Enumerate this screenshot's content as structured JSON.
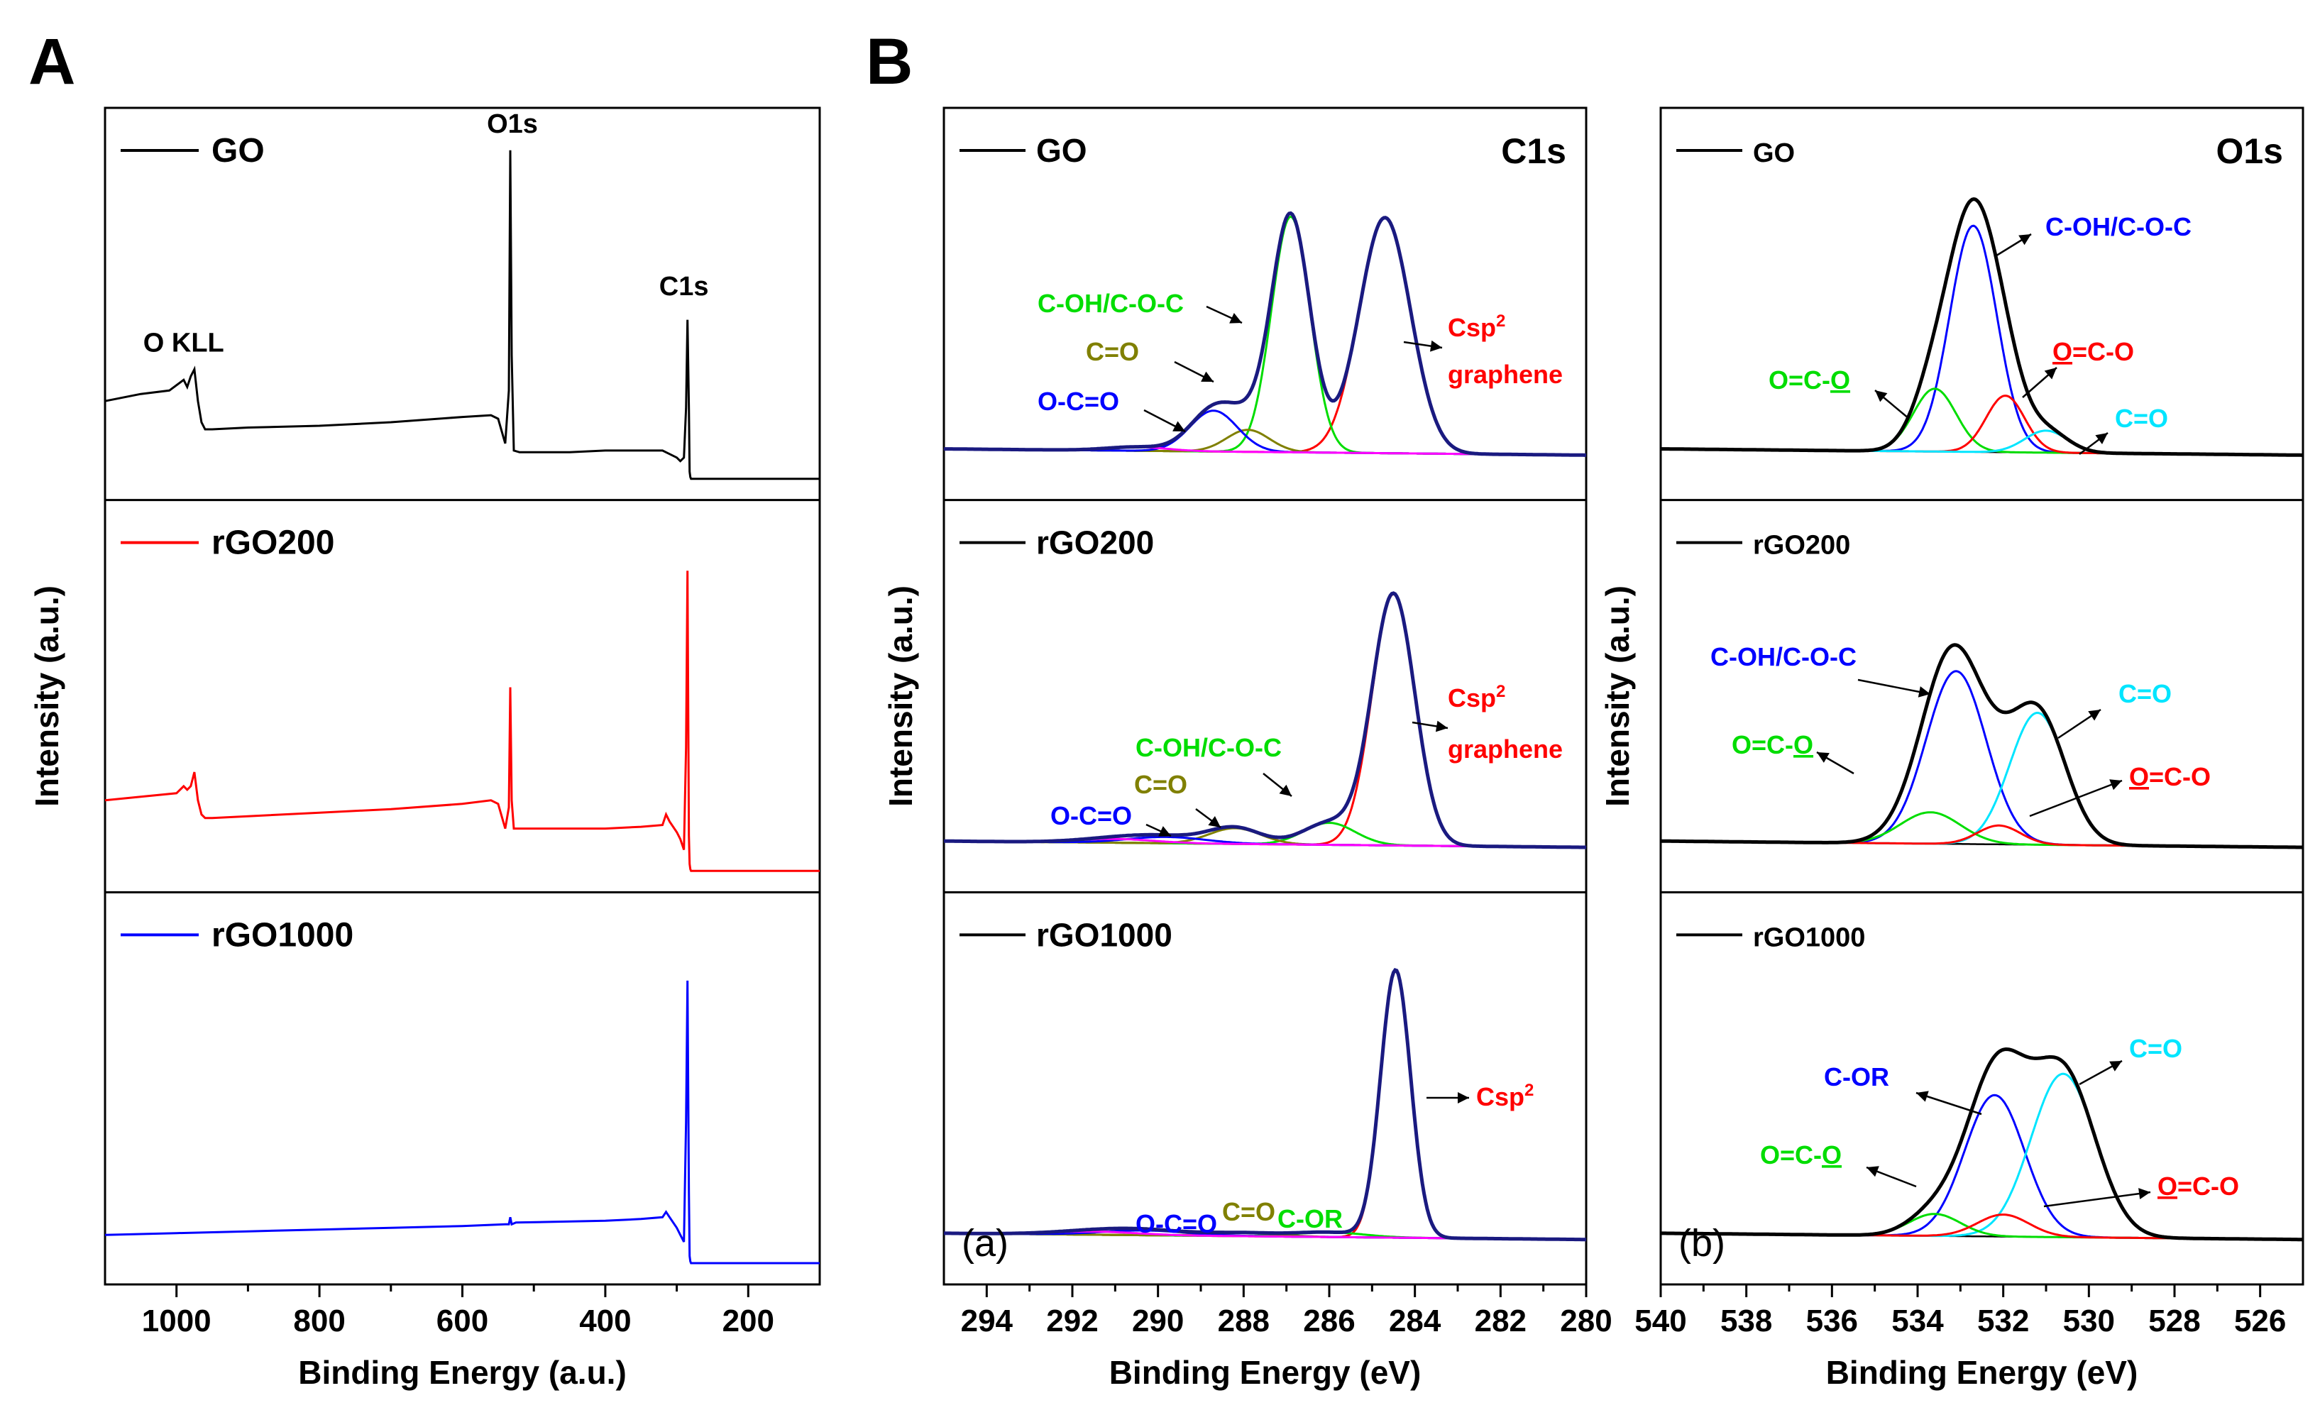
{
  "panel_letters": {
    "A": "A",
    "B": "B"
  },
  "colors": {
    "GO": "#000000",
    "rGO200": "#ff0000",
    "rGO1000": "#0000ff",
    "envelope": "#1a1a80",
    "red": "#ff0000",
    "green": "#00dd00",
    "olive": "#808000",
    "blue": "#0000ff",
    "magenta": "#ff00ff",
    "cyan": "#00e5ff",
    "baseline": "#000000"
  },
  "chart_data": [
    {
      "id": "A",
      "type": "line",
      "title": "",
      "xlabel": "Binding Energy (a.u.)",
      "ylabel": "Intensity (a.u.)",
      "xlim": [
        1100,
        100
      ],
      "xticks": [
        1000,
        800,
        600,
        400,
        200
      ],
      "xtick_labels": [
        "1000",
        "800",
        "600",
        "400",
        "200"
      ],
      "series": [
        {
          "name": "GO",
          "color": "#000000",
          "legend_label": "GO",
          "ylim": [
            0,
            1
          ],
          "x": [
            1100,
            1050,
            1010,
            990,
            985,
            980,
            975,
            970,
            965,
            960,
            950,
            900,
            800,
            700,
            600,
            560,
            550,
            540,
            535,
            533,
            531,
            528,
            520,
            500,
            450,
            400,
            350,
            320,
            310,
            300,
            295,
            290,
            287,
            285,
            283,
            282,
            281,
            280,
            270,
            200,
            100
          ],
          "y": [
            0.22,
            0.24,
            0.25,
            0.28,
            0.26,
            0.29,
            0.31,
            0.22,
            0.16,
            0.14,
            0.14,
            0.145,
            0.15,
            0.16,
            0.175,
            0.18,
            0.17,
            0.1,
            0.25,
            0.93,
            0.35,
            0.08,
            0.075,
            0.075,
            0.075,
            0.08,
            0.08,
            0.08,
            0.07,
            0.06,
            0.05,
            0.06,
            0.2,
            0.45,
            0.2,
            0.02,
            0.005,
            0.0,
            0.0,
            0.0,
            0.0
          ],
          "annotations": [
            {
              "text": "O KLL",
              "x": 990,
              "y": 0.36
            },
            {
              "text": "O1s",
              "x": 530,
              "y": 0.98
            },
            {
              "text": "C1s",
              "x": 290,
              "y": 0.52
            }
          ]
        },
        {
          "name": "rGO200",
          "color": "#ff0000",
          "legend_label": "rGO200",
          "ylim": [
            0,
            1
          ],
          "x": [
            1100,
            1050,
            1000,
            990,
            985,
            980,
            975,
            970,
            965,
            960,
            950,
            900,
            800,
            700,
            600,
            560,
            550,
            540,
            535,
            533,
            531,
            528,
            520,
            500,
            400,
            350,
            320,
            315,
            310,
            300,
            295,
            290,
            287,
            285,
            283,
            282,
            281,
            280,
            270,
            200,
            100
          ],
          "y": [
            0.2,
            0.21,
            0.22,
            0.24,
            0.23,
            0.24,
            0.28,
            0.2,
            0.16,
            0.15,
            0.15,
            0.155,
            0.165,
            0.175,
            0.19,
            0.2,
            0.19,
            0.12,
            0.18,
            0.52,
            0.2,
            0.12,
            0.12,
            0.12,
            0.12,
            0.125,
            0.13,
            0.16,
            0.14,
            0.11,
            0.09,
            0.06,
            0.35,
            0.85,
            0.1,
            0.02,
            0.005,
            0.0,
            0.0,
            0.0,
            0.0
          ]
        },
        {
          "name": "rGO1000",
          "color": "#0000ff",
          "legend_label": "rGO1000",
          "ylim": [
            0,
            1
          ],
          "x": [
            1100,
            1000,
            900,
            800,
            700,
            600,
            540,
            535,
            533,
            531,
            525,
            400,
            350,
            320,
            315,
            310,
            300,
            295,
            290,
            287,
            285,
            283,
            282,
            281,
            280,
            270,
            200,
            100
          ],
          "y": [
            0.08,
            0.085,
            0.09,
            0.095,
            0.1,
            0.105,
            0.11,
            0.11,
            0.13,
            0.11,
            0.115,
            0.12,
            0.125,
            0.13,
            0.145,
            0.13,
            0.1,
            0.08,
            0.06,
            0.4,
            0.8,
            0.2,
            0.02,
            0.005,
            0.0,
            0.0,
            0.0,
            0.0
          ]
        }
      ]
    },
    {
      "id": "B-C1s",
      "type": "line",
      "title": "C1s",
      "xlabel": "Binding Energy (eV)",
      "ylabel": "Intensity (a.u.)",
      "xlim": [
        295,
        280
      ],
      "xticks": [
        294,
        292,
        290,
        288,
        286,
        284,
        282,
        280
      ],
      "xtick_labels": [
        "294",
        "292",
        "290",
        "288",
        "286",
        "284",
        "282",
        "280"
      ],
      "subpanels": [
        {
          "legend": "GO",
          "components": [
            {
              "label": "Csp2 graphene",
              "color": "#ff0000",
              "center": 284.7,
              "height": 0.75,
              "width": 0.6
            },
            {
              "label": "C-OH/C-O-C",
              "color": "#00dd00",
              "center": 286.9,
              "height": 0.75,
              "width": 0.45
            },
            {
              "label": "C=O",
              "color": "#808000",
              "center": 287.9,
              "height": 0.07,
              "width": 0.5
            },
            {
              "label": "O-C=O",
              "color": "#0000ff",
              "center": 288.7,
              "height": 0.13,
              "width": 0.55
            },
            {
              "label": "",
              "color": "#ff00ff",
              "center": 290.5,
              "height": 0.012,
              "width": 0.7
            }
          ],
          "labels": [
            {
              "text": "C-OH/C-O-C",
              "color": "#00dd00"
            },
            {
              "text": "C=O",
              "color": "#808000"
            },
            {
              "text": "O-C=O",
              "color": "#0000ff"
            },
            {
              "text": "Csp",
              "sup": "2",
              "color": "#ff0000"
            },
            {
              "text": "graphene",
              "color": "#ff0000"
            }
          ]
        },
        {
          "legend": "rGO200",
          "components": [
            {
              "label": "Csp2 graphene",
              "color": "#ff0000",
              "center": 284.5,
              "height": 0.8,
              "width": 0.5
            },
            {
              "label": "C-OH/C-O-C",
              "color": "#00dd00",
              "center": 286.0,
              "height": 0.07,
              "width": 0.6
            },
            {
              "label": "C=O",
              "color": "#808000",
              "center": 288.2,
              "height": 0.05,
              "width": 0.6
            },
            {
              "label": "O-C=O",
              "color": "#0000ff",
              "center": 289.8,
              "height": 0.02,
              "width": 0.9
            },
            {
              "label": "",
              "color": "#ff00ff",
              "center": 291.0,
              "height": 0.012,
              "width": 0.9
            }
          ],
          "labels": [
            {
              "text": "C-OH/C-O-C",
              "color": "#00dd00"
            },
            {
              "text": "C=O",
              "color": "#808000"
            },
            {
              "text": "O-C=O",
              "color": "#0000ff"
            },
            {
              "text": "Csp",
              "sup": "2",
              "color": "#ff0000"
            },
            {
              "text": "graphene",
              "color": "#ff0000"
            }
          ]
        },
        {
          "legend": "rGO1000",
          "tag": "(a)",
          "components": [
            {
              "label": "Csp2",
              "color": "#ff0000",
              "center": 284.45,
              "height": 0.85,
              "width": 0.35
            },
            {
              "label": "C-OR",
              "color": "#00dd00",
              "center": 286.0,
              "height": 0.015,
              "width": 0.8
            },
            {
              "label": "C=O",
              "color": "#808000",
              "center": 288.0,
              "height": 0.01,
              "width": 0.8
            },
            {
              "label": "O-C=O",
              "color": "#0000ff",
              "center": 290.3,
              "height": 0.015,
              "width": 1.0
            },
            {
              "label": "",
              "color": "#ff00ff",
              "center": 291.5,
              "height": 0.01,
              "width": 1.0
            }
          ],
          "labels": [
            {
              "text": "Csp",
              "sup": "2",
              "color": "#ff0000"
            },
            {
              "text": "C-OR",
              "color": "#00dd00"
            },
            {
              "text": "C=O",
              "color": "#808000"
            },
            {
              "text": "O-C=O",
              "color": "#0000ff"
            }
          ]
        }
      ]
    },
    {
      "id": "B-O1s",
      "type": "line",
      "title": "O1s",
      "xlabel": "Binding Energy (eV)",
      "ylabel": "Intensity (a.u.)",
      "xlim": [
        540,
        525
      ],
      "xticks": [
        540,
        538,
        536,
        534,
        532,
        530,
        528,
        526
      ],
      "xtick_labels": [
        "540",
        "538",
        "536",
        "534",
        "532",
        "530",
        "528",
        "526"
      ],
      "subpanels": [
        {
          "legend": "GO",
          "components": [
            {
              "label": "C-OH/C-O-C",
              "color": "#0000ff",
              "center": 532.7,
              "height": 0.72,
              "width": 0.55
            },
            {
              "label": "O=C-O",
              "color": "#00dd00",
              "center": 533.6,
              "height": 0.2,
              "width": 0.5
            },
            {
              "label": "O=C-O",
              "color": "#ff0000",
              "center": 531.95,
              "height": 0.18,
              "width": 0.45
            },
            {
              "label": "C=O",
              "color": "#00e5ff",
              "center": 531.0,
              "height": 0.07,
              "width": 0.5
            }
          ],
          "labels": [
            {
              "text": "C-OH/C-O-C",
              "color": "#0000ff"
            },
            {
              "text": "O=C-",
              "u": "O",
              "color": "#00dd00"
            },
            {
              "text": "O",
              "u1": true,
              "rest": "=C-O",
              "color": "#ff0000"
            },
            {
              "text": "C=O",
              "color": "#00e5ff"
            }
          ]
        },
        {
          "legend": "rGO200",
          "components": [
            {
              "label": "C-OH/C-O-C",
              "color": "#0000ff",
              "center": 533.1,
              "height": 0.55,
              "width": 0.7
            },
            {
              "label": "C=O",
              "color": "#00e5ff",
              "center": 531.2,
              "height": 0.42,
              "width": 0.65
            },
            {
              "label": "O=C-O",
              "color": "#00dd00",
              "center": 533.7,
              "height": 0.1,
              "width": 0.7
            },
            {
              "label": "O=C-O",
              "color": "#ff0000",
              "center": 532.1,
              "height": 0.06,
              "width": 0.5
            }
          ],
          "labels": [
            {
              "text": "C-OH/C-O-C",
              "color": "#0000ff"
            },
            {
              "text": "C=O",
              "color": "#00e5ff"
            },
            {
              "text": "O=C-",
              "u": "O",
              "color": "#00dd00"
            },
            {
              "text": "O",
              "u1": true,
              "rest": "=C-O",
              "color": "#ff0000"
            }
          ]
        },
        {
          "legend": "rGO1000",
          "tag": "(b)",
          "components": [
            {
              "label": "C-OR",
              "color": "#0000ff",
              "center": 532.2,
              "height": 0.45,
              "width": 0.7
            },
            {
              "label": "C=O",
              "color": "#00e5ff",
              "center": 530.6,
              "height": 0.52,
              "width": 0.75
            },
            {
              "label": "O=C-O",
              "color": "#00dd00",
              "center": 533.6,
              "height": 0.07,
              "width": 0.6
            },
            {
              "label": "O=C-O",
              "color": "#ff0000",
              "center": 532.0,
              "height": 0.07,
              "width": 0.6
            }
          ],
          "labels": [
            {
              "text": "C-OR",
              "color": "#0000ff"
            },
            {
              "text": "C=O",
              "color": "#00e5ff"
            },
            {
              "text": "O=C-",
              "u": "O",
              "color": "#00dd00"
            },
            {
              "text": "O",
              "u1": true,
              "rest": "=C-O",
              "color": "#ff0000"
            }
          ]
        }
      ]
    }
  ]
}
